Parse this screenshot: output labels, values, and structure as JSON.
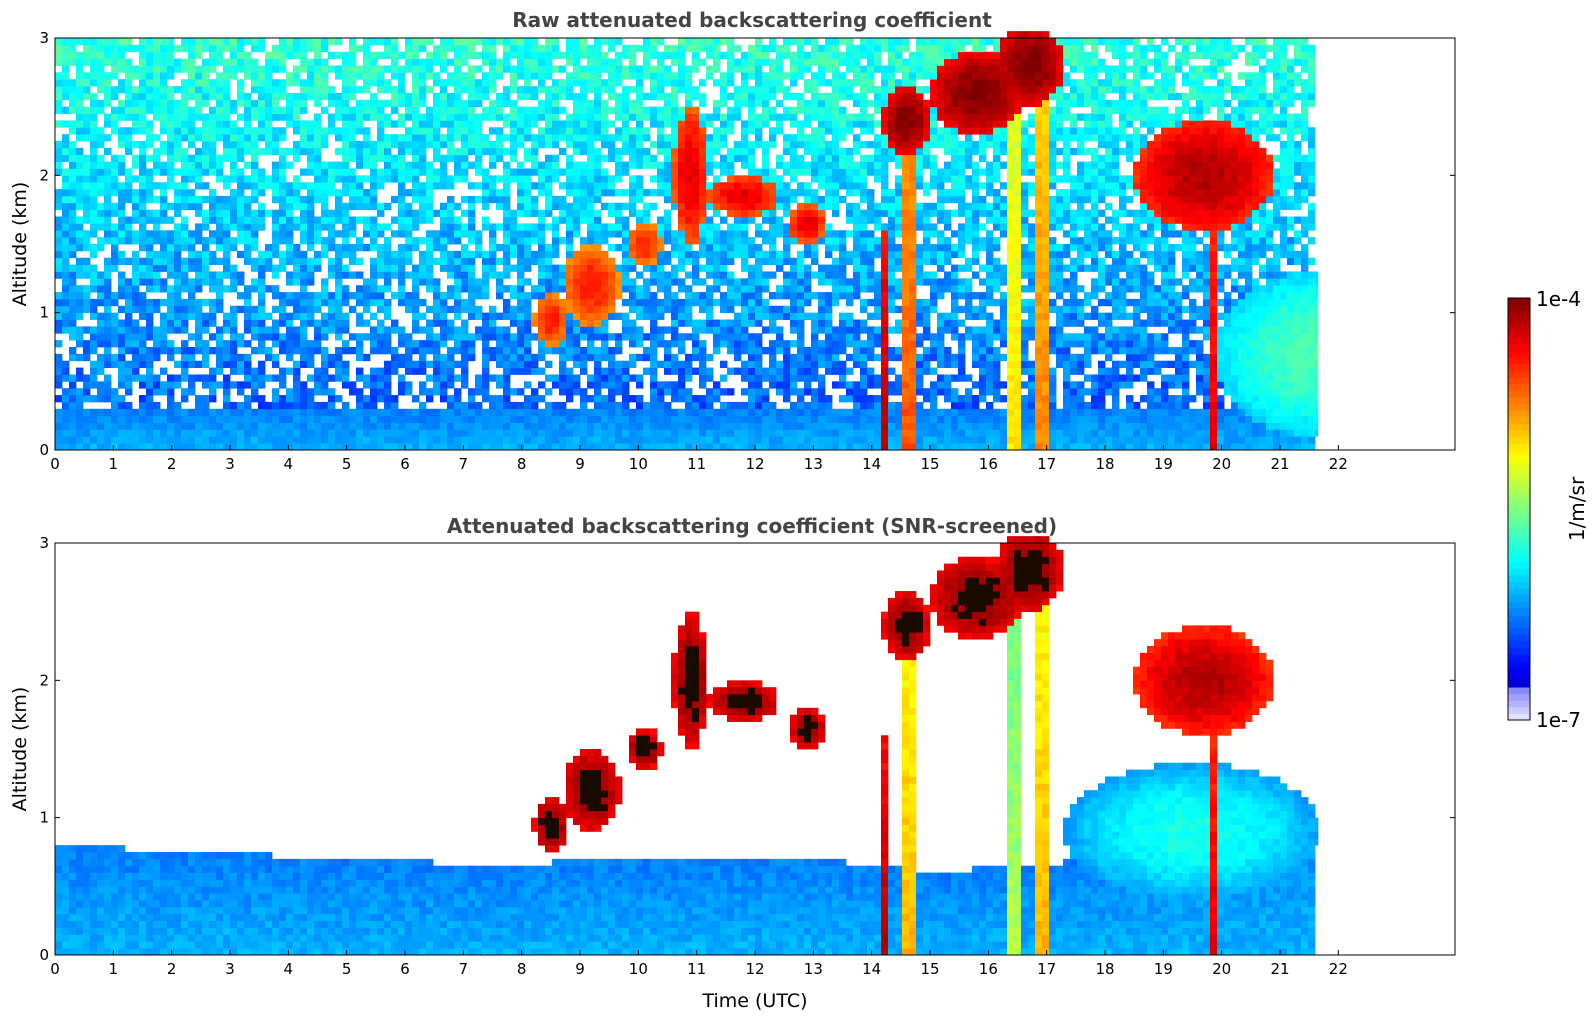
{
  "chart_data": [
    {
      "type": "heatmap",
      "title": "Raw attenuated backscattering coefficient",
      "xlabel": "",
      "ylabel": "Altitude (km)",
      "xlim": [
        0,
        24
      ],
      "ylim": [
        0,
        3
      ],
      "x_ticks": [
        0,
        1,
        2,
        3,
        4,
        5,
        6,
        7,
        8,
        9,
        10,
        11,
        12,
        13,
        14,
        15,
        16,
        17,
        18,
        19,
        20,
        21,
        22
      ],
      "y_ticks": [
        0,
        1,
        2,
        3
      ],
      "data_end_time": 21.65,
      "screened": false,
      "seed": 11,
      "layers": [
        {
          "kind": "boundary_layer",
          "t0": 0,
          "t1": 21.65,
          "top": 0.3,
          "intensity": 0.3
        },
        {
          "kind": "noise_field",
          "t0": 0,
          "t1": 21.65,
          "from": 0.3,
          "to": 3.0,
          "intensity": 0.2
        },
        {
          "kind": "fall_streak",
          "t0": 14.1,
          "t1": 14.3,
          "top": 1.6,
          "intensity": 0.95
        },
        {
          "kind": "fall_streak",
          "t0": 14.55,
          "t1": 14.75,
          "top": 2.5,
          "intensity": 0.8
        },
        {
          "kind": "fall_streak",
          "t0": 16.3,
          "t1": 16.5,
          "top": 3.0,
          "intensity": 0.65
        },
        {
          "kind": "fall_streak",
          "t0": 16.8,
          "t1": 17.0,
          "top": 2.7,
          "intensity": 0.75
        },
        {
          "kind": "fall_streak",
          "t0": 19.75,
          "t1": 19.95,
          "top": 2.3,
          "intensity": 0.9
        },
        {
          "kind": "cloud",
          "t": 14.6,
          "alt": 2.4,
          "w": 0.4,
          "h": 0.25,
          "intensity": 1.0
        },
        {
          "kind": "cloud",
          "t": 15.8,
          "alt": 2.6,
          "w": 0.8,
          "h": 0.3,
          "intensity": 1.0
        },
        {
          "kind": "cloud",
          "t": 16.7,
          "alt": 2.8,
          "w": 0.6,
          "h": 0.3,
          "intensity": 1.0
        },
        {
          "kind": "cloud",
          "t": 19.7,
          "alt": 2.0,
          "w": 1.2,
          "h": 0.4,
          "intensity": 0.95
        },
        {
          "kind": "cloud",
          "t": 11.8,
          "alt": 1.85,
          "w": 0.6,
          "h": 0.15,
          "intensity": 0.9
        },
        {
          "kind": "cloud",
          "t": 12.9,
          "alt": 1.65,
          "w": 0.3,
          "h": 0.15,
          "intensity": 0.9
        },
        {
          "kind": "cloud",
          "t": 10.9,
          "alt": 2.0,
          "w": 0.3,
          "h": 0.5,
          "intensity": 0.9
        },
        {
          "kind": "cloud",
          "t": 9.2,
          "alt": 1.2,
          "w": 0.5,
          "h": 0.3,
          "intensity": 0.85
        },
        {
          "kind": "cloud",
          "t": 8.5,
          "alt": 0.95,
          "w": 0.3,
          "h": 0.2,
          "intensity": 0.85
        },
        {
          "kind": "cloud",
          "t": 10.1,
          "alt": 1.5,
          "w": 0.3,
          "h": 0.15,
          "intensity": 0.85
        },
        {
          "kind": "cloud",
          "t": 21.65,
          "alt": 0.7,
          "w": 1.8,
          "h": 0.6,
          "intensity": 0.45
        }
      ]
    },
    {
      "type": "heatmap",
      "title": "Attenuated backscattering coefficient (SNR-screened)",
      "xlabel": "Time (UTC)",
      "ylabel": "Altitude (km)",
      "xlim": [
        0,
        24
      ],
      "ylim": [
        0,
        3
      ],
      "x_ticks": [
        0,
        1,
        2,
        3,
        4,
        5,
        6,
        7,
        8,
        9,
        10,
        11,
        12,
        13,
        14,
        15,
        16,
        17,
        18,
        19,
        20,
        21,
        22
      ],
      "y_ticks": [
        0,
        1,
        2,
        3
      ],
      "data_end_time": 21.65,
      "screened": true,
      "seed": 11,
      "boundary_top": [
        [
          0,
          0.8
        ],
        [
          5,
          0.7
        ],
        [
          8,
          0.65
        ],
        [
          9,
          0.7
        ],
        [
          13,
          0.7
        ],
        [
          15,
          0.6
        ],
        [
          18,
          0.7
        ],
        [
          19,
          1.0
        ],
        [
          21.65,
          1.1
        ]
      ],
      "layers": [
        {
          "kind": "boundary_layer",
          "t0": 0,
          "t1": 21.65,
          "top": 0.6,
          "intensity": 0.3
        },
        {
          "kind": "fall_streak",
          "t0": 14.1,
          "t1": 14.3,
          "top": 1.6,
          "intensity": 0.95
        },
        {
          "kind": "fall_streak",
          "t0": 14.55,
          "t1": 14.75,
          "top": 2.5,
          "intensity": 0.7
        },
        {
          "kind": "fall_streak",
          "t0": 16.3,
          "t1": 16.5,
          "top": 3.0,
          "intensity": 0.55
        },
        {
          "kind": "fall_streak",
          "t0": 16.8,
          "t1": 17.0,
          "top": 2.7,
          "intensity": 0.7
        },
        {
          "kind": "fall_streak",
          "t0": 19.75,
          "t1": 19.95,
          "top": 2.3,
          "intensity": 0.9
        },
        {
          "kind": "cloud",
          "t": 14.6,
          "alt": 2.4,
          "w": 0.4,
          "h": 0.25,
          "intensity": 1.0
        },
        {
          "kind": "cloud",
          "t": 15.8,
          "alt": 2.6,
          "w": 0.8,
          "h": 0.3,
          "intensity": 1.0
        },
        {
          "kind": "cloud",
          "t": 16.7,
          "alt": 2.8,
          "w": 0.6,
          "h": 0.3,
          "intensity": 1.0
        },
        {
          "kind": "cloud",
          "t": 19.7,
          "alt": 2.0,
          "w": 1.2,
          "h": 0.4,
          "intensity": 0.95
        },
        {
          "kind": "cloud",
          "t": 11.8,
          "alt": 1.85,
          "w": 0.6,
          "h": 0.15,
          "intensity": 1.0
        },
        {
          "kind": "cloud",
          "t": 12.9,
          "alt": 1.65,
          "w": 0.3,
          "h": 0.15,
          "intensity": 1.0
        },
        {
          "kind": "cloud",
          "t": 10.9,
          "alt": 2.0,
          "w": 0.3,
          "h": 0.5,
          "intensity": 1.0
        },
        {
          "kind": "cloud",
          "t": 9.2,
          "alt": 1.2,
          "w": 0.5,
          "h": 0.3,
          "intensity": 1.0
        },
        {
          "kind": "cloud",
          "t": 8.5,
          "alt": 0.95,
          "w": 0.3,
          "h": 0.2,
          "intensity": 1.0
        },
        {
          "kind": "cloud",
          "t": 10.1,
          "alt": 1.5,
          "w": 0.3,
          "h": 0.15,
          "intensity": 1.0
        },
        {
          "kind": "cloud",
          "t": 19.5,
          "alt": 0.9,
          "w": 2.2,
          "h": 0.5,
          "intensity": 0.4
        }
      ]
    }
  ],
  "colorbar": {
    "label": "1/m/sr",
    "min_label": "1e-7",
    "max_label": "1e-4",
    "colormap": "jet",
    "scale": "log",
    "range": [
      1e-07,
      0.0001
    ]
  }
}
